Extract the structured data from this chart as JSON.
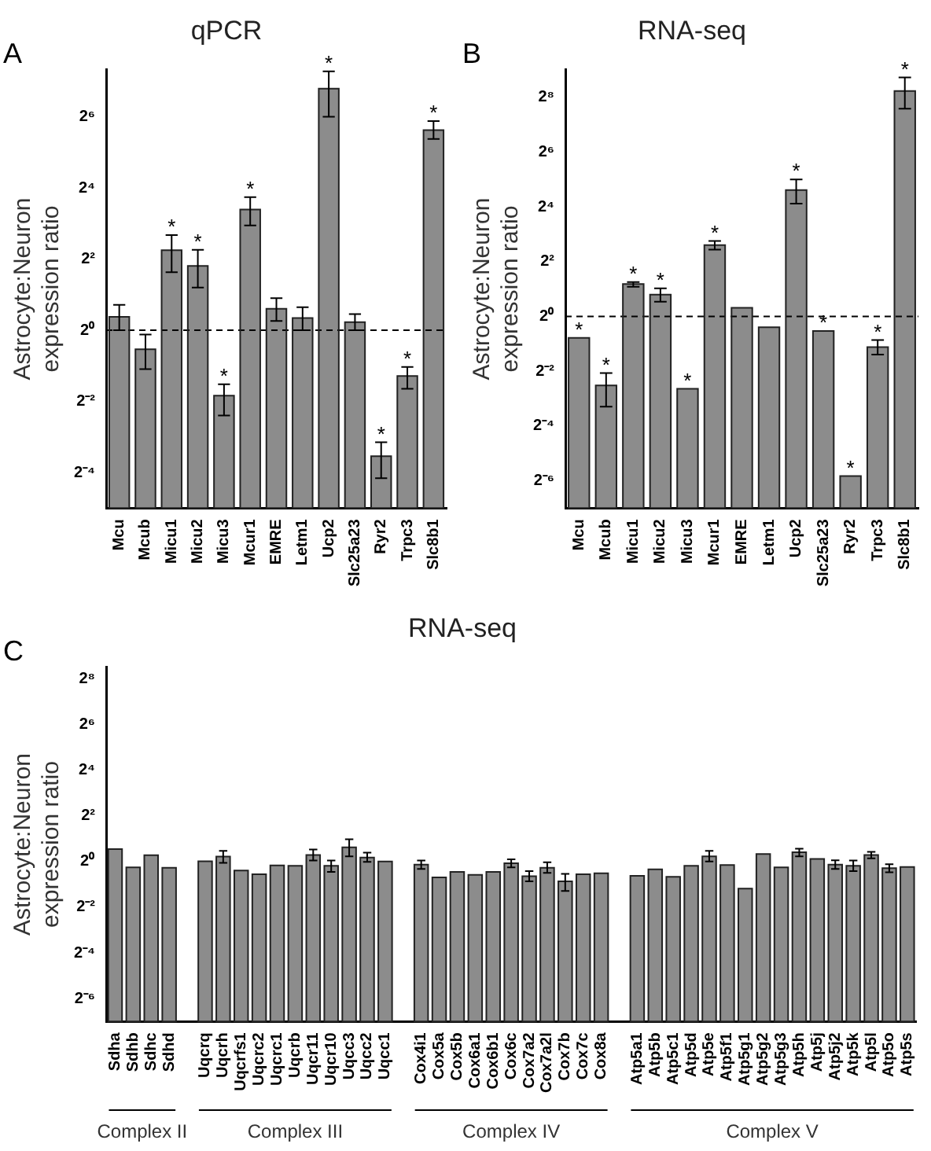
{
  "chart_data": [
    {
      "type": "bar",
      "title": "qPCR",
      "ylabel": "Astrocyte:Neuron\nexpression ratio",
      "categories": [
        "Mcu",
        "Mcub",
        "Micu1",
        "Micu2",
        "Micu3",
        "Mcur1",
        "EMRE",
        "Letm1",
        "Ucp2",
        "Slc25a23",
        "Ryr2",
        "Trpc3",
        "Slc8b1"
      ],
      "values": [
        1.3,
        0.69,
        4.76,
        3.5,
        0.28,
        10.5,
        1.52,
        1.27,
        111,
        1.17,
        0.086,
        0.41,
        49.5
      ],
      "errors": [
        [
          1.0,
          1.64
        ],
        [
          0.47,
          0.92
        ],
        [
          3.1,
          6.4
        ],
        [
          2.3,
          4.8
        ],
        [
          0.19,
          0.35
        ],
        [
          7.7,
          13.4
        ],
        [
          1.2,
          1.87
        ],
        [
          1.0,
          1.57
        ],
        [
          64,
          155
        ],
        [
          1.0,
          1.37
        ],
        [
          0.056,
          0.113
        ],
        [
          0.32,
          0.49
        ],
        [
          41.6,
          58.9
        ]
      ],
      "color": "#8c8c8c",
      "log": true,
      "ylim": [
        0.03125,
        160
      ],
      "yticks": [
        {
          "value": 0.0625,
          "label": "2⁻⁴"
        },
        {
          "value": 0.25,
          "label": "2⁻²"
        },
        {
          "value": 1,
          "label": "2⁰"
        },
        {
          "value": 4,
          "label": "2²"
        },
        {
          "value": 16,
          "label": "2⁴"
        },
        {
          "value": 64,
          "label": "2⁶"
        }
      ],
      "ref_lines": [
        {
          "axis": "y",
          "value": 1,
          "line_style": "dashed"
        }
      ],
      "grid": false,
      "legend": false,
      "annotations": [
        "A",
        {
          "text": "*",
          "x": "Micu1",
          "y": 6.4
        },
        {
          "text": "*",
          "x": "Micu2",
          "y": 4.8
        },
        {
          "text": "*",
          "x": "Micu3",
          "y": 0.35
        },
        {
          "text": "*",
          "x": "Mcur1",
          "y": 13.4
        },
        {
          "text": "*",
          "x": "Ucp2",
          "y": 155
        },
        {
          "text": "*",
          "x": "Ryr2",
          "y": 0.113
        },
        {
          "text": "*",
          "x": "Trpc3",
          "y": 0.49
        },
        {
          "text": "*",
          "x": "Slc8b1",
          "y": 58.9
        }
      ]
    },
    {
      "type": "bar",
      "title": "RNA-seq",
      "ylabel": "Astrocyte:Neuron\nexpression ratio",
      "categories": [
        "Mcu",
        "Mcub",
        "Micu1",
        "Micu2",
        "Micu3",
        "Mcur1",
        "EMRE",
        "Letm1",
        "Ucp2",
        "Slc25a23",
        "Ryr2",
        "Trpc3",
        "Slc8b1"
      ],
      "values": [
        0.58,
        0.174,
        2.27,
        1.73,
        0.16,
        6.06,
        1.24,
        0.76,
        24.4,
        0.69,
        0.0176,
        0.46,
        300
      ],
      "errors": [
        null,
        [
          0.102,
          0.238
        ],
        [
          2.12,
          2.39
        ],
        [
          1.45,
          2.03
        ],
        null,
        [
          5.42,
          6.75
        ],
        null,
        null,
        [
          17.3,
          32
        ],
        null,
        null,
        [
          0.38,
          0.55
        ],
        [
          191,
          422
        ]
      ],
      "color": "#8c8c8c",
      "log": true,
      "ylim": [
        0.0078125,
        512
      ],
      "yticks": [
        {
          "value": 0.015625,
          "label": "2⁻⁶"
        },
        {
          "value": 0.0625,
          "label": "2⁻⁴"
        },
        {
          "value": 0.25,
          "label": "2⁻²"
        },
        {
          "value": 1,
          "label": "2⁰"
        },
        {
          "value": 4,
          "label": "2²"
        },
        {
          "value": 16,
          "label": "2⁴"
        },
        {
          "value": 64,
          "label": "2⁶"
        },
        {
          "value": 256,
          "label": "2⁸"
        }
      ],
      "ref_lines": [
        {
          "axis": "y",
          "value": 1,
          "line_style": "dashed"
        }
      ],
      "grid": false,
      "legend": false,
      "annotations": [
        "B",
        {
          "text": "*",
          "x": "Mcu",
          "y": 0.58
        },
        {
          "text": "*",
          "x": "Mcub",
          "y": 0.238
        },
        {
          "text": "*",
          "x": "Micu1",
          "y": 2.39
        },
        {
          "text": "*",
          "x": "Micu2",
          "y": 2.03
        },
        {
          "text": "*",
          "x": "Micu3",
          "y": 0.16
        },
        {
          "text": "*",
          "x": "Mcur1",
          "y": 6.75
        },
        {
          "text": "*",
          "x": "Ucp2",
          "y": 32
        },
        {
          "text": "*",
          "x": "Slc25a23",
          "y": 0.69
        },
        {
          "text": "*",
          "x": "Ryr2",
          "y": 0.0176
        },
        {
          "text": "*",
          "x": "Trpc3",
          "y": 0.55
        },
        {
          "text": "*",
          "x": "Slc8b1",
          "y": 422
        }
      ]
    },
    {
      "type": "bar",
      "title": "RNA-seq",
      "ylabel": "Astrocyte:Neuron\nexpression ratio",
      "categories": [
        "Sdha",
        "Sdhb",
        "Sdhc",
        "Sdhd",
        null,
        "Uqcrq",
        "Uqcrh",
        "Uqcrfs1",
        "Uqcrc2",
        "Uqcrc1",
        "Uqcrb",
        "Uqcr11",
        "Uqcr10",
        "Uqcc3",
        "Uqcc2",
        "Uqcc1",
        null,
        "Cox4i1",
        "Cox5a",
        "Cox5b",
        "Cox6a1",
        "Cox6b1",
        "Cox6c",
        "Cox7a2",
        "Cox7a2l",
        "Cox7b",
        "Cox7c",
        "Cox8a",
        null,
        "Atp5a1",
        "Atp5b",
        "Atp5c1",
        "Atp5d",
        "Atp5e",
        "Atp5f1",
        "Atp5g1",
        "Atp5g2",
        "Atp5g3",
        "Atp5h",
        "Atp5j",
        "Atp5j2",
        "Atp5k",
        "Atp5l",
        "Atp5o",
        "Atp5s"
      ],
      "values": [
        1.46,
        0.84,
        1.21,
        0.83,
        null,
        1.01,
        1.16,
        0.76,
        0.68,
        0.89,
        0.88,
        1.22,
        0.88,
        1.54,
        1.13,
        1.0,
        null,
        0.91,
        0.62,
        0.73,
        0.67,
        0.73,
        0.95,
        0.64,
        0.83,
        0.55,
        0.68,
        0.7,
        null,
        0.65,
        0.79,
        0.63,
        0.88,
        1.17,
        0.9,
        0.44,
        1.26,
        0.84,
        1.33,
        1.08,
        0.91,
        0.88,
        1.22,
        0.82,
        0.85
      ],
      "errors": [
        null,
        null,
        null,
        null,
        null,
        null,
        [
          0.96,
          1.38
        ],
        null,
        null,
        null,
        null,
        [
          1.03,
          1.44
        ],
        [
          0.73,
          1.03
        ],
        [
          1.17,
          1.96
        ],
        [
          0.99,
          1.31
        ],
        null,
        null,
        [
          0.8,
          1.03
        ],
        null,
        null,
        null,
        null,
        [
          0.84,
          1.07
        ],
        [
          0.55,
          0.75
        ],
        [
          0.71,
          0.98
        ],
        [
          0.41,
          0.69
        ],
        null,
        null,
        null,
        null,
        null,
        null,
        null,
        [
          1.0,
          1.38
        ],
        null,
        null,
        null,
        null,
        [
          1.17,
          1.48
        ],
        null,
        [
          0.8,
          1.04
        ],
        [
          0.75,
          1.03
        ],
        [
          1.1,
          1.34
        ],
        [
          0.72,
          0.92
        ],
        null
      ],
      "color": "#8c8c8c",
      "log": true,
      "ylim": [
        0.0078125,
        362
      ],
      "yticks": [
        {
          "value": 0.015625,
          "label": "2⁻⁶"
        },
        {
          "value": 0.0625,
          "label": "2⁻⁴"
        },
        {
          "value": 0.25,
          "label": "2⁻²"
        },
        {
          "value": 1,
          "label": "2⁰"
        },
        {
          "value": 4,
          "label": "2²"
        },
        {
          "value": 16,
          "label": "2⁴"
        },
        {
          "value": 64,
          "label": "2⁶"
        },
        {
          "value": 256,
          "label": "2⁸"
        }
      ],
      "grid": false,
      "legend": false,
      "annotations": [
        "C",
        "Complex II",
        "Complex III",
        "Complex IV",
        "Complex V"
      ]
    }
  ]
}
